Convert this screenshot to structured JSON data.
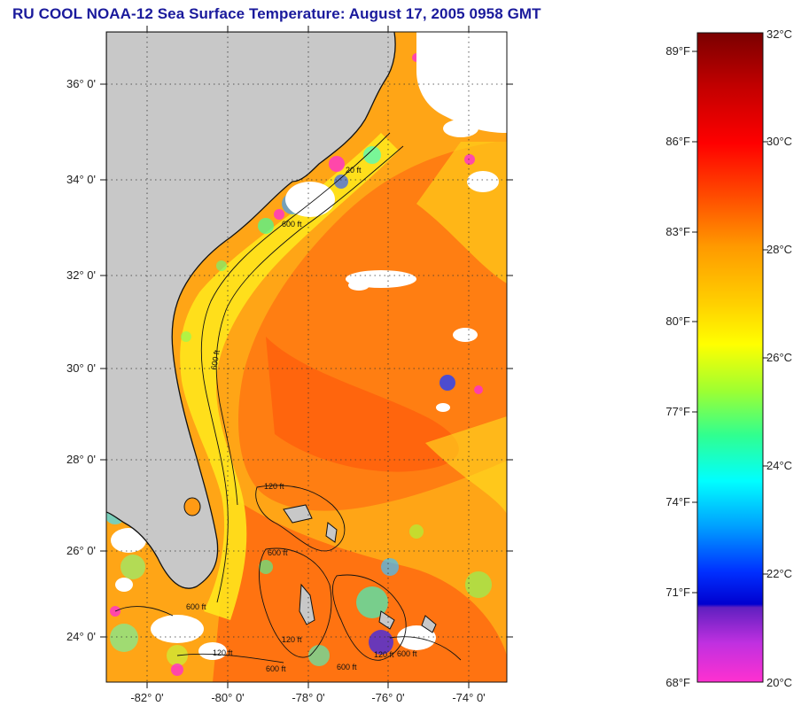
{
  "header": {
    "title": "RU COOL  NOAA-12  Sea Surface Temperature:  August 17, 2005 0958 GMT"
  },
  "map": {
    "lat_labels": [
      "36° 0'",
      "34° 0'",
      "32° 0'",
      "30° 0'",
      "28° 0'",
      "26° 0'",
      "24° 0'"
    ],
    "lon_labels": [
      "-82° 0'",
      "-80° 0'",
      "-78° 0'",
      "-76° 0'",
      "-74° 0'"
    ],
    "bathymetry_labels": [
      "600 ft",
      "600 ft",
      "120 ft",
      "600 ft",
      "120 ft",
      "600 ft",
      "120 ft",
      "600 ft",
      "600 ft",
      "120 ft",
      "600 ft",
      "20 ft"
    ],
    "colors": {
      "land": "#c8c8c8",
      "cloud": "#ffffff",
      "sst_main": "#ff7a10",
      "sst_warm": "#ff5a0a",
      "sst_shelf": "#ffe21a",
      "sst_cool": "#3cff9a"
    }
  },
  "colorbar": {
    "fahrenheit_labels": [
      "89°F",
      "86°F",
      "83°F",
      "80°F",
      "77°F",
      "74°F",
      "71°F",
      "68°F"
    ],
    "celsius_labels": [
      "32°C",
      "30°C",
      "28°C",
      "26°C",
      "24°C",
      "22°C",
      "20°C"
    ]
  }
}
